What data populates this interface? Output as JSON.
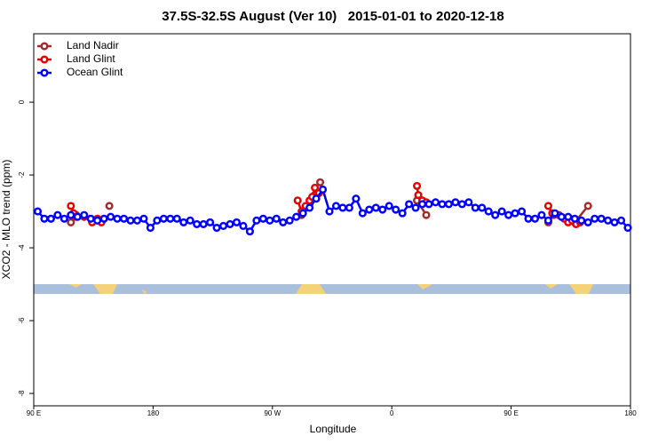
{
  "chart_data": {
    "type": "scatter",
    "title": "37.5S-32.5S August (Ver 10)   2015-01-01 to 2020-12-18",
    "x_label": "Longitude",
    "y_label": "XCO2 - MLO trend (ppm)",
    "xlim": [
      90,
      540
    ],
    "ylim": [
      -8.34,
      1.88
    ],
    "xticks": [
      {
        "value": 90,
        "label": "90 E"
      },
      180,
      {
        "value": 270,
        "label": "90 W"
      },
      {
        "value": 360,
        "label": "0"
      },
      {
        "value": 450,
        "label": "90 E"
      },
      {
        "value": 540,
        "label": "180"
      }
    ],
    "yticks": [
      -8,
      -6,
      -4,
      -2,
      0
    ],
    "legend_position": "top-left",
    "series": [
      {
        "name": "Land Nadir",
        "color": "#a52a2a",
        "x": [
          118,
          122,
          147,
          292,
          298,
          302,
          305,
          306,
          379,
          386,
          478,
          482,
          498,
          508
        ],
        "values": [
          -3.3,
          -3.1,
          -2.85,
          -3.1,
          -2.8,
          -2.55,
          -2.35,
          -2.2,
          -2.7,
          -3.1,
          -3.3,
          -3.1,
          -3.3,
          -2.85
        ]
      },
      {
        "name": "Land Glint",
        "color": "#e60000",
        "x": [
          118,
          120,
          122,
          128,
          134,
          138,
          141,
          289,
          292,
          295,
          298,
          300,
          302,
          305,
          379,
          380,
          383,
          386,
          478,
          481,
          486,
          490,
          493,
          496,
          499,
          502
        ],
        "values": [
          -2.85,
          -3.05,
          -3.15,
          -3.15,
          -3.3,
          -3.2,
          -3.3,
          -2.7,
          -3.0,
          -2.85,
          -2.7,
          -2.6,
          -2.35,
          -2.5,
          -2.3,
          -2.55,
          -2.7,
          -2.75,
          -2.85,
          -3.05,
          -3.1,
          -3.2,
          -3.3,
          -3.25,
          -3.35,
          -3.3
        ]
      },
      {
        "name": "Ocean Glint",
        "color": "#0000ff",
        "x": [
          93,
          98,
          103,
          108,
          113,
          118,
          123,
          128,
          133,
          138,
          143,
          148,
          153,
          158,
          163,
          168,
          173,
          178,
          183,
          188,
          193,
          198,
          203,
          208,
          213,
          218,
          223,
          228,
          233,
          238,
          243,
          248,
          253,
          258,
          263,
          268,
          273,
          278,
          283,
          288,
          293,
          298,
          303,
          308,
          313,
          318,
          323,
          328,
          333,
          338,
          343,
          348,
          353,
          358,
          363,
          368,
          373,
          378,
          383,
          388,
          393,
          398,
          403,
          408,
          413,
          418,
          423,
          428,
          433,
          438,
          443,
          448,
          453,
          458,
          463,
          468,
          473,
          478,
          483,
          488,
          493,
          498,
          503,
          508,
          513,
          518,
          523,
          528,
          533,
          538
        ],
        "values": [
          -3.0,
          -3.2,
          -3.2,
          -3.1,
          -3.2,
          -3.1,
          -3.15,
          -3.1,
          -3.2,
          -3.25,
          -3.2,
          -3.15,
          -3.2,
          -3.2,
          -3.25,
          -3.25,
          -3.2,
          -3.45,
          -3.25,
          -3.2,
          -3.2,
          -3.2,
          -3.3,
          -3.25,
          -3.35,
          -3.35,
          -3.3,
          -3.45,
          -3.4,
          -3.35,
          -3.3,
          -3.4,
          -3.55,
          -3.25,
          -3.2,
          -3.25,
          -3.2,
          -3.3,
          -3.25,
          -3.15,
          -3.05,
          -2.9,
          -2.65,
          -2.4,
          -3.0,
          -2.85,
          -2.9,
          -2.9,
          -2.65,
          -3.05,
          -2.95,
          -2.9,
          -2.95,
          -2.85,
          -2.95,
          -3.05,
          -2.8,
          -2.9,
          -2.8,
          -2.8,
          -2.75,
          -2.8,
          -2.8,
          -2.75,
          -2.8,
          -2.75,
          -2.9,
          -2.9,
          -3.0,
          -3.1,
          -3.0,
          -3.1,
          -3.05,
          -3.0,
          -3.2,
          -3.2,
          -3.1,
          -3.25,
          -3.05,
          -3.15,
          -3.15,
          -3.2,
          -3.25,
          -3.3,
          -3.2,
          -3.2,
          -3.25,
          -3.3,
          -3.25,
          -3.45
        ]
      }
    ]
  }
}
